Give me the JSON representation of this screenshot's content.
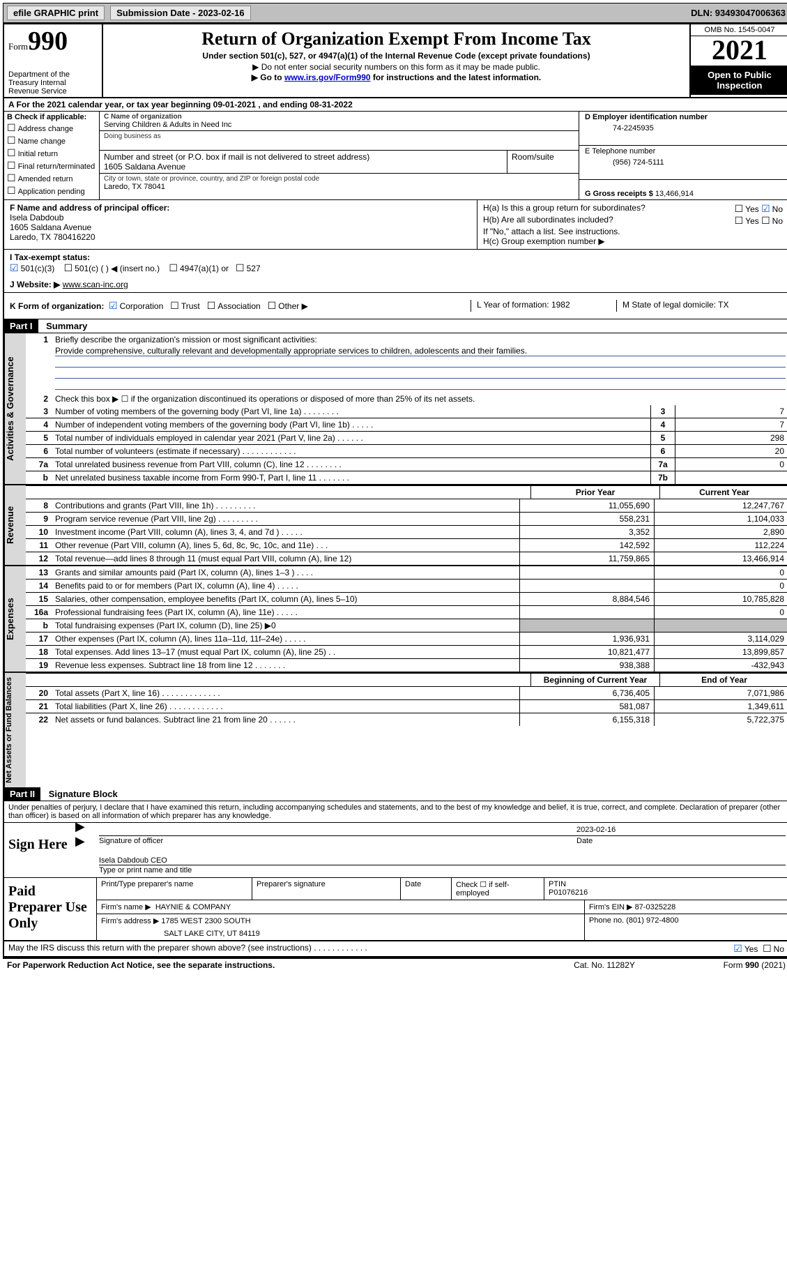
{
  "toolbar": {
    "efile": "efile GRAPHIC print",
    "submission_label": "Submission Date - 2023-02-16",
    "dln": "DLN: 93493047006363"
  },
  "header": {
    "form_label": "Form",
    "form_number": "990",
    "dept": "Department of the Treasury Internal Revenue Service",
    "title": "Return of Organization Exempt From Income Tax",
    "sub": "Under section 501(c), 527, or 4947(a)(1) of the Internal Revenue Code (except private foundations)",
    "note1": "▶ Do not enter social security numbers on this form as it may be made public.",
    "note2_pre": "▶ Go to ",
    "note2_link": "www.irs.gov/Form990",
    "note2_post": " for instructions and the latest information.",
    "omb": "OMB No. 1545-0047",
    "year": "2021",
    "open1": "Open to Public",
    "open2": "Inspection"
  },
  "row_a": "A For the 2021 calendar year, or tax year beginning 09-01-2021   , and ending 08-31-2022",
  "col_b": {
    "label": "B Check if applicable:",
    "opts": [
      "Address change",
      "Name change",
      "Initial return",
      "Final return/terminated",
      "Amended return",
      "Application pending"
    ]
  },
  "col_c": {
    "name_label": "C Name of organization",
    "name": "Serving Children & Adults in Need Inc",
    "dba_label": "Doing business as",
    "addr_label": "Number and street (or P.O. box if mail is not delivered to street address)",
    "room_label": "Room/suite",
    "addr": "1605 Saldana Avenue",
    "city_label": "City or town, state or province, country, and ZIP or foreign postal code",
    "city": "Laredo, TX  78041"
  },
  "col_d": {
    "ein_label": "D Employer identification number",
    "ein": "74-2245935",
    "tel_label": "E Telephone number",
    "tel": "(956) 724-5111",
    "gross_label": "G Gross receipts $",
    "gross": "13,466,914"
  },
  "col_f": {
    "label": "F Name and address of principal officer:",
    "name": "Isela Dabdoub",
    "addr1": "1605 Saldana Avenue",
    "addr2": "Laredo, TX  780416220"
  },
  "col_h": {
    "ha": "H(a)  Is this a group return for subordinates?",
    "hb": "H(b)  Are all subordinates included?",
    "hb_note": "If \"No,\" attach a list. See instructions.",
    "hc": "H(c)  Group exemption number ▶"
  },
  "row_i": {
    "label": "I   Tax-exempt status:",
    "opt1": "501(c)(3)",
    "opt2": "501(c) (  ) ◀ (insert no.)",
    "opt3": "4947(a)(1) or",
    "opt4": "527"
  },
  "row_j": {
    "label": "J   Website: ▶",
    "val": "www.scan-inc.org"
  },
  "row_k": {
    "label": "K Form of organization:",
    "opts": [
      "Corporation",
      "Trust",
      "Association",
      "Other ▶"
    ],
    "l": "L Year of formation: 1982",
    "m": "M State of legal domicile: TX"
  },
  "part1": {
    "hdr": "Part I",
    "title": "Summary"
  },
  "vtabs": {
    "gov": "Activities & Governance",
    "rev": "Revenue",
    "exp": "Expenses",
    "net": "Net Assets or Fund Balances"
  },
  "summary": {
    "q1": "Briefly describe the organization's mission or most significant activities:",
    "mission": "Provide comprehensive, culturally relevant and developmentally appropriate services to children, adolescents and their families.",
    "q2": "Check this box ▶ ☐  if the organization discontinued its operations or disposed of more than 25% of its net assets.",
    "rows": [
      {
        "n": "3",
        "d": "Number of voting members of the governing body (Part VI, line 1a)   .    .    .    .    .    .    .    .",
        "b": "3",
        "v": "7"
      },
      {
        "n": "4",
        "d": "Number of independent voting members of the governing body (Part VI, line 1b)   .    .    .    .    .",
        "b": "4",
        "v": "7"
      },
      {
        "n": "5",
        "d": "Total number of individuals employed in calendar year 2021 (Part V, line 2a)   .    .    .    .    .    .",
        "b": "5",
        "v": "298"
      },
      {
        "n": "6",
        "d": "Total number of volunteers (estimate if necessary)   .    .    .    .    .    .    .    .    .    .    .    .",
        "b": "6",
        "v": "20"
      },
      {
        "n": "7a",
        "d": "Total unrelated business revenue from Part VIII, column (C), line 12   .    .    .    .    .    .    .    .",
        "b": "7a",
        "v": "0"
      },
      {
        "n": "b",
        "d": "Net unrelated business taxable income from Form 990-T, Part I, line 11   .    .    .    .    .    .    .",
        "b": "7b",
        "v": ""
      }
    ]
  },
  "twocol": {
    "h1": "Prior Year",
    "h2": "Current Year",
    "rev": [
      {
        "n": "8",
        "d": "Contributions and grants (Part VIII, line 1h)   .    .    .    .    .    .    .    .    .",
        "c1": "11,055,690",
        "c2": "12,247,767"
      },
      {
        "n": "9",
        "d": "Program service revenue (Part VIII, line 2g)   .    .    .    .    .    .    .    .    .",
        "c1": "558,231",
        "c2": "1,104,033"
      },
      {
        "n": "10",
        "d": "Investment income (Part VIII, column (A), lines 3, 4, and 7d )   .    .    .    .    .",
        "c1": "3,352",
        "c2": "2,890"
      },
      {
        "n": "11",
        "d": "Other revenue (Part VIII, column (A), lines 5, 6d, 8c, 9c, 10c, and 11e)   .    .    .",
        "c1": "142,592",
        "c2": "112,224"
      },
      {
        "n": "12",
        "d": "Total revenue—add lines 8 through 11 (must equal Part VIII, column (A), line 12)",
        "c1": "11,759,865",
        "c2": "13,466,914"
      }
    ],
    "exp": [
      {
        "n": "13",
        "d": "Grants and similar amounts paid (Part IX, column (A), lines 1–3 )   .    .    .    .",
        "c1": "",
        "c2": "0"
      },
      {
        "n": "14",
        "d": "Benefits paid to or for members (Part IX, column (A), line 4)   .    .    .    .    .",
        "c1": "",
        "c2": "0"
      },
      {
        "n": "15",
        "d": "Salaries, other compensation, employee benefits (Part IX, column (A), lines 5–10)",
        "c1": "8,884,546",
        "c2": "10,785,828"
      },
      {
        "n": "16a",
        "d": "Professional fundraising fees (Part IX, column (A), line 11e)   .    .    .    .    .",
        "c1": "",
        "c2": "0"
      },
      {
        "n": "b",
        "d": "Total fundraising expenses (Part IX, column (D), line 25) ▶0",
        "c1": "shaded",
        "c2": "shaded"
      },
      {
        "n": "17",
        "d": "Other expenses (Part IX, column (A), lines 11a–11d, 11f–24e)   .    .    .    .    .",
        "c1": "1,936,931",
        "c2": "3,114,029"
      },
      {
        "n": "18",
        "d": "Total expenses. Add lines 13–17 (must equal Part IX, column (A), line 25)   .    .",
        "c1": "10,821,477",
        "c2": "13,899,857"
      },
      {
        "n": "19",
        "d": "Revenue less expenses. Subtract line 18 from line 12   .    .    .    .    .    .    .",
        "c1": "938,388",
        "c2": "-432,943"
      }
    ],
    "h3": "Beginning of Current Year",
    "h4": "End of Year",
    "net": [
      {
        "n": "20",
        "d": "Total assets (Part X, line 16)   .    .    .    .    .    .    .    .    .    .    .    .    .",
        "c1": "6,736,405",
        "c2": "7,071,986"
      },
      {
        "n": "21",
        "d": "Total liabilities (Part X, line 26)   .    .    .    .    .    .    .    .    .    .    .    .",
        "c1": "581,087",
        "c2": "1,349,611"
      },
      {
        "n": "22",
        "d": "Net assets or fund balances. Subtract line 21 from line 20   .    .    .    .    .    .",
        "c1": "6,155,318",
        "c2": "5,722,375"
      }
    ]
  },
  "part2": {
    "hdr": "Part II",
    "title": "Signature Block"
  },
  "penalties": "Under penalties of perjury, I declare that I have examined this return, including accompanying schedules and statements, and to the best of my knowledge and belief, it is true, correct, and complete. Declaration of preparer (other than officer) is based on all information of which preparer has any knowledge.",
  "sign": {
    "label": "Sign Here",
    "sig_label": "Signature of officer",
    "date_label": "Date",
    "date": "2023-02-16",
    "name": "Isela Dabdoub CEO",
    "name_label": "Type or print name and title"
  },
  "prep": {
    "label": "Paid Preparer Use Only",
    "h1": "Print/Type preparer's name",
    "h2": "Preparer's signature",
    "h3": "Date",
    "h4": "Check ☐ if self-employed",
    "h5_label": "PTIN",
    "h5": "P01076216",
    "firm_label": "Firm's name    ▶",
    "firm": "HAYNIE & COMPANY",
    "ein_label": "Firm's EIN ▶",
    "ein": "87-0325228",
    "addr_label": "Firm's address ▶",
    "addr1": "1785 WEST 2300 SOUTH",
    "addr2": "SALT LAKE CITY, UT  84119",
    "phone_label": "Phone no.",
    "phone": "(801) 972-4800"
  },
  "footer": {
    "discuss": "May the IRS discuss this return with the preparer shown above? (see instructions)   .    .    .    .    .    .    .    .    .    .    .    .",
    "paperwork": "For Paperwork Reduction Act Notice, see the separate instructions.",
    "cat": "Cat. No. 11282Y",
    "form": "Form 990 (2021)"
  }
}
